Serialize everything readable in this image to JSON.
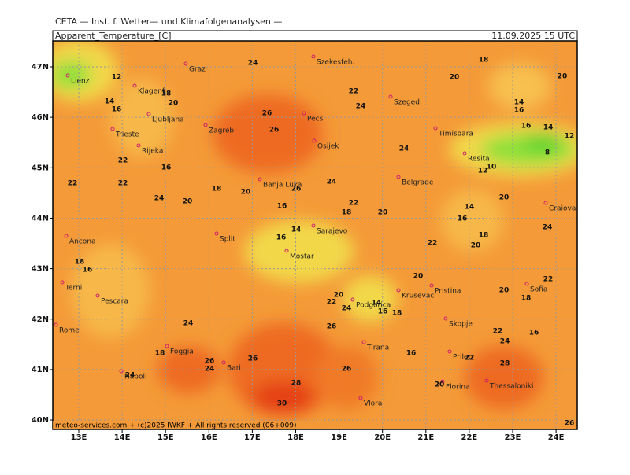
{
  "header": {
    "institute": "CETA — Inst. f. Wetter— und Klimafolgenanalysen —",
    "title": "Apparent_Temperature_[C]",
    "time": "11.09.2025 15 UTC"
  },
  "axes": {
    "latitudes": [
      "47N",
      "46N",
      "45N",
      "44N",
      "43N",
      "42N",
      "41N",
      "40N"
    ],
    "longitudes": [
      "13E",
      "14E",
      "15E",
      "16E",
      "17E",
      "18E",
      "19E",
      "20E",
      "21E",
      "22E",
      "23E",
      "24E"
    ]
  },
  "cities": [
    "Lienz",
    "Graz",
    "Szekesfeh.",
    "Klagenf.",
    "Ljubljana",
    "Zagreb",
    "Pecs",
    "Szeged",
    "Timisoara",
    "Trieste",
    "Rijeka",
    "Osijek",
    "Resita",
    "Banja Luka",
    "Belgrade",
    "Craiova",
    "Sarajevo",
    "Split",
    "Ancona",
    "Mostar",
    "Terni",
    "Pristina",
    "Sofia",
    "Pescara",
    "Krusevac",
    "Podgorica",
    "Skopje",
    "Rome",
    "Tirana",
    "Foggia",
    "Prilep",
    "Bari",
    "Napoli",
    "Thessaloniki",
    "Florina",
    "Vlora"
  ],
  "contour_labels": [
    12,
    24,
    18,
    20,
    20,
    18,
    14,
    20,
    16,
    22,
    24,
    14,
    16,
    26,
    26,
    16,
    14,
    12,
    8,
    24,
    22,
    16,
    10,
    12,
    22,
    22,
    18,
    26,
    24,
    20,
    24,
    20,
    16,
    22,
    18,
    20,
    20,
    14,
    16,
    24,
    14,
    16,
    18,
    22,
    20,
    18,
    16,
    20,
    20,
    22,
    24,
    14,
    16,
    18,
    18,
    22,
    20,
    24,
    26,
    22,
    16,
    24,
    18,
    26,
    24,
    26,
    16,
    22,
    28,
    24,
    26,
    28,
    30,
    20,
    26
  ],
  "footer": "meteo-services.com + (c)2025 IWKF + All rights reserved (06+009)"
}
